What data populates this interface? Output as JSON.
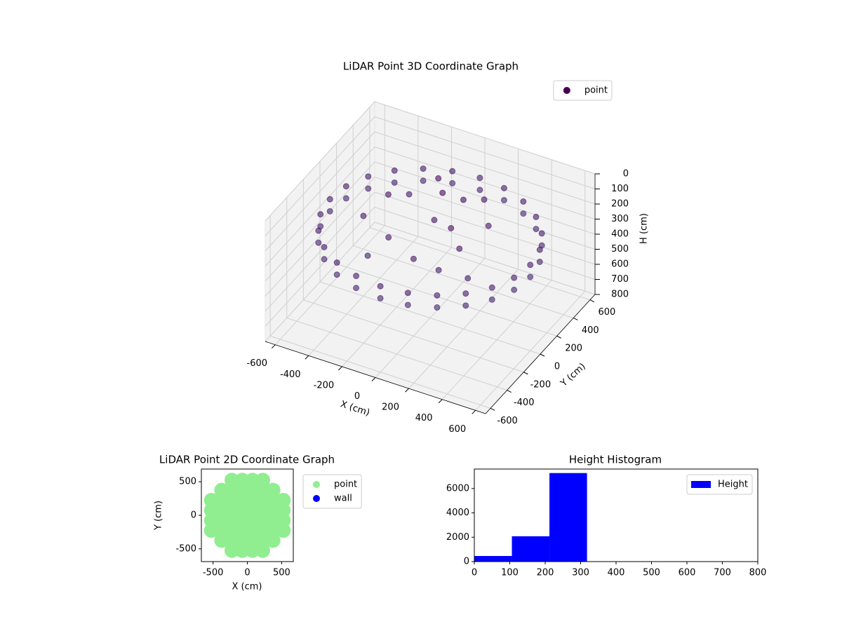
{
  "chart_data": [
    {
      "type": "scatter3d",
      "title": "LiDAR Point 3D Coordinate Graph",
      "xlabel": "X (cm)",
      "ylabel": "Y (cm)",
      "zlabel": "H (cm)",
      "xlim": [
        -660,
        660
      ],
      "ylim": [
        -660,
        660
      ],
      "zlim": [
        800,
        0
      ],
      "xticks": [
        -600,
        -400,
        -200,
        0,
        200,
        400,
        600
      ],
      "yticks": [
        -600,
        -400,
        -200,
        0,
        200,
        400,
        600
      ],
      "zticks": [
        0,
        100,
        200,
        300,
        400,
        500,
        600,
        700,
        800
      ],
      "legend": "upper right",
      "series": [
        {
          "name": "point",
          "color": "#440154",
          "colormap": [
            "#440154",
            "#3b528b"
          ],
          "x": [
            600,
            580,
            520,
            424,
            300,
            155,
            0,
            -155,
            -300,
            -424,
            -520,
            -580,
            -600,
            -580,
            -520,
            -424,
            -300,
            -155,
            0,
            155,
            300,
            424,
            520,
            580,
            600,
            580,
            520,
            424,
            300,
            155,
            0,
            -155,
            -300,
            -424,
            -520,
            -580,
            -600,
            -580,
            -520,
            -424,
            -300,
            -155,
            0,
            155,
            300,
            424,
            520,
            580,
            -300,
            -150,
            0,
            150,
            -200,
            100,
            250,
            -100,
            50,
            300,
            -350,
            200,
            0,
            150,
            -250,
            350
          ],
          "y": [
            0,
            155,
            300,
            424,
            520,
            580,
            600,
            580,
            520,
            424,
            300,
            155,
            0,
            -155,
            -300,
            -424,
            -520,
            -580,
            -600,
            -580,
            -520,
            -424,
            -300,
            -155,
            0,
            155,
            300,
            424,
            520,
            580,
            600,
            580,
            520,
            424,
            300,
            155,
            0,
            -155,
            -300,
            -424,
            -520,
            -580,
            -600,
            -580,
            -520,
            -424,
            -300,
            -155,
            100,
            -200,
            50,
            -50,
            -350,
            200,
            -150,
            300,
            -300,
            100,
            -100,
            -300,
            150,
            350,
            250,
            -250
          ],
          "z": [
            310,
            310,
            310,
            310,
            310,
            310,
            310,
            310,
            310,
            310,
            310,
            310,
            310,
            310,
            310,
            310,
            310,
            310,
            310,
            310,
            310,
            310,
            310,
            310,
            230,
            230,
            230,
            230,
            230,
            230,
            230,
            230,
            230,
            230,
            230,
            230,
            230,
            230,
            230,
            230,
            230,
            230,
            230,
            230,
            230,
            230,
            230,
            230,
            150,
            200,
            180,
            120,
            250,
            100,
            160,
            90,
            210,
            140,
            190,
            230,
            60,
            170,
            220,
            260
          ]
        }
      ]
    },
    {
      "type": "scatter",
      "title": "LiDAR Point 2D Coordinate Graph",
      "xlabel": "X (cm)",
      "ylabel": "Y (cm)",
      "xlim": [
        -670,
        670
      ],
      "ylim": [
        -690,
        690
      ],
      "xticks": [
        -500,
        0,
        500
      ],
      "yticks": [
        -500,
        0,
        500
      ],
      "legend": "outside right",
      "series": [
        {
          "name": "point",
          "color": "#90ee90",
          "x": [
            -525,
            -525,
            -525,
            -525,
            -375,
            -375,
            -375,
            -375,
            -375,
            -375,
            -225,
            -225,
            -225,
            -225,
            -225,
            -225,
            -225,
            -225,
            -75,
            -75,
            -75,
            -75,
            -75,
            -75,
            -75,
            -75,
            75,
            75,
            75,
            75,
            75,
            75,
            75,
            75,
            225,
            225,
            225,
            225,
            225,
            225,
            225,
            225,
            375,
            375,
            375,
            375,
            375,
            375,
            525,
            525,
            525,
            525
          ],
          "y": [
            -225,
            -75,
            75,
            225,
            -375,
            -225,
            -75,
            75,
            225,
            375,
            -525,
            -375,
            -225,
            -75,
            75,
            225,
            375,
            525,
            -525,
            -375,
            -225,
            -75,
            75,
            225,
            375,
            525,
            -525,
            -375,
            -225,
            -75,
            75,
            225,
            375,
            525,
            -525,
            -375,
            -225,
            -75,
            75,
            225,
            375,
            525,
            -375,
            -225,
            -75,
            75,
            225,
            375,
            -225,
            -75,
            75,
            225
          ]
        },
        {
          "name": "wall",
          "color": "#0000ff",
          "x": [],
          "y": []
        }
      ]
    },
    {
      "type": "histogram",
      "title": "Height Histogram",
      "bins": [
        0,
        106,
        212,
        318
      ],
      "xlim": [
        0,
        800
      ],
      "ylim": [
        0,
        7600
      ],
      "xticks": [
        0,
        100,
        200,
        300,
        400,
        500,
        600,
        700,
        800
      ],
      "yticks": [
        0,
        2000,
        4000,
        6000
      ],
      "legend": "upper right",
      "series": [
        {
          "name": "Height",
          "color": "#0000ff",
          "values": [
            460,
            2080,
            7270
          ]
        }
      ]
    }
  ]
}
